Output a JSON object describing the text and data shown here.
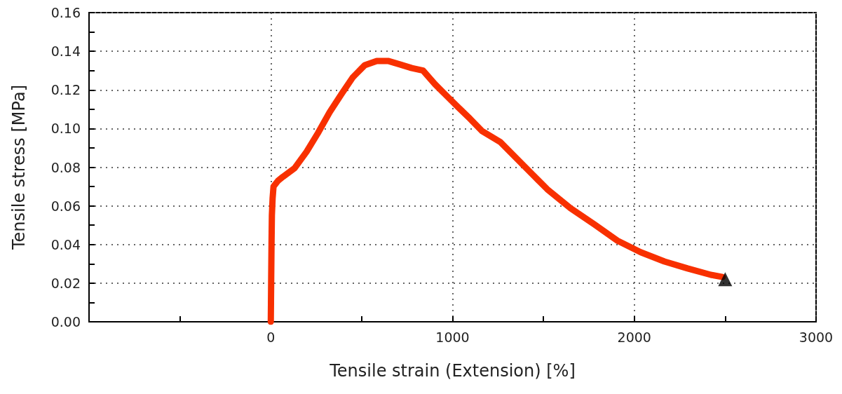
{
  "chart_data": {
    "type": "line",
    "xlabel": "Tensile strain (Extension) [%]",
    "ylabel": "Tensile stress [MPa]",
    "xlim": [
      -1000,
      3000
    ],
    "xticks": [
      {
        "value": -1000,
        "label": null
      },
      {
        "value": -500,
        "label": null
      },
      0,
      {
        "value": 500,
        "label": null
      },
      1000,
      {
        "value": 1500,
        "label": null
      },
      2000,
      {
        "value": 2500,
        "label": null
      },
      3000
    ],
    "ylim": [
      0,
      0.16
    ],
    "yticks": [
      {
        "value": 0,
        "label": "0.00"
      },
      {
        "value": 0.01,
        "label": null
      },
      {
        "value": 0.02,
        "label": "0.02"
      },
      {
        "value": 0.03,
        "label": null
      },
      {
        "value": 0.04,
        "label": "0.04"
      },
      {
        "value": 0.05,
        "label": null
      },
      {
        "value": 0.06,
        "label": "0.06"
      },
      {
        "value": 0.07,
        "label": null
      },
      {
        "value": 0.08,
        "label": "0.08"
      },
      {
        "value": 0.09,
        "label": null
      },
      {
        "value": 0.1,
        "label": "0.10"
      },
      {
        "value": 0.11,
        "label": null
      },
      {
        "value": 0.12,
        "label": "0.12"
      },
      {
        "value": 0.13,
        "label": null
      },
      {
        "value": 0.14,
        "label": "0.14"
      },
      {
        "value": 0.15,
        "label": null
      },
      {
        "value": 0.16,
        "label": "0.16"
      }
    ],
    "grid": true,
    "marker": "none",
    "line_style": "solid",
    "series": [
      {
        "color": "#f83000",
        "x": [
          0,
          2,
          4,
          6,
          10,
          15,
          40,
          66,
          131,
          197,
          259,
          324,
          390,
          452,
          517,
          583,
          645,
          710,
          776,
          838,
          903,
          969,
          1031,
          1097,
          1162,
          1263,
          1394,
          1521,
          1649,
          1780,
          1907,
          2035,
          2166,
          2293,
          2421,
          2486
        ],
        "values": [
          0,
          0.02,
          0.04,
          0.055,
          0.064,
          0.07,
          0.073,
          0.075,
          0.0795,
          0.088,
          0.0976,
          0.1085,
          0.118,
          0.1266,
          0.1328,
          0.135,
          0.135,
          0.1332,
          0.1313,
          0.13,
          0.123,
          0.1168,
          0.111,
          0.105,
          0.0987,
          0.093,
          0.0806,
          0.0686,
          0.0588,
          0.0504,
          0.042,
          0.036,
          0.0312,
          0.0276,
          0.0243,
          0.0232
        ]
      },
      {
        "type": "scatter",
        "marker": "triangle",
        "color": "#000000",
        "x": [
          2500
        ],
        "values": [
          0.022
        ]
      }
    ]
  }
}
